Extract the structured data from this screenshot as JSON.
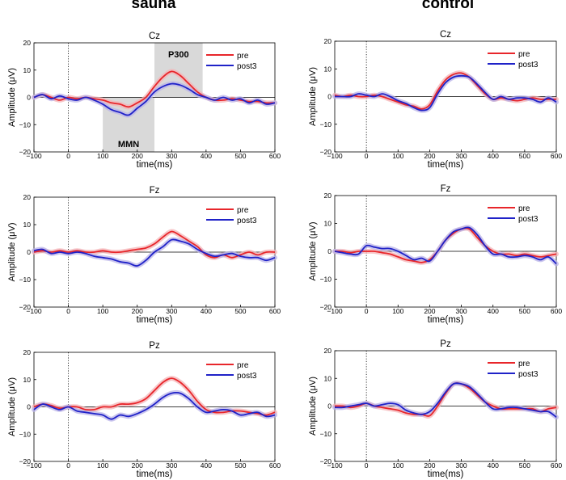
{
  "figure": {
    "column_titles": [
      "sauna",
      "control"
    ],
    "ylabel": "Amplitude (μV)",
    "xlabel": "time(ms)"
  },
  "colors": {
    "pre": "#e8262b",
    "post3": "#1f22c8",
    "pre_band": "#f4b3b5",
    "post3_band": "#b9b3e8",
    "shade": "#d9d9d9"
  },
  "chart_data": [
    {
      "type": "line",
      "group": "sauna",
      "title": "Cz",
      "xlabel": "time(ms)",
      "ylabel": "Amplitude (μV)",
      "xlim": [
        -100,
        600
      ],
      "ylim": [
        -20,
        20
      ],
      "xticks": [
        -100,
        0,
        100,
        200,
        300,
        400,
        500,
        600
      ],
      "yticks": [
        -20,
        -10,
        0,
        10,
        20
      ],
      "legend_position": "top-right",
      "shaded_windows": [
        {
          "label": "MMN",
          "range": [
            100,
            250
          ]
        },
        {
          "label": "P300",
          "range": [
            250,
            390
          ]
        }
      ],
      "x": [
        -100,
        -75,
        -50,
        -25,
        0,
        25,
        50,
        75,
        100,
        125,
        150,
        175,
        200,
        225,
        250,
        275,
        300,
        325,
        350,
        375,
        400,
        425,
        450,
        475,
        500,
        525,
        550,
        575,
        600
      ],
      "series": [
        {
          "name": "pre",
          "values": [
            0,
            1,
            0,
            -1,
            0,
            -0.5,
            0,
            -0.5,
            -1,
            -2,
            -2.5,
            -3.5,
            -2,
            0,
            4,
            7.5,
            9.5,
            8,
            5,
            2,
            0,
            -1,
            -1,
            -0.5,
            -1,
            -1.5,
            -1.5,
            -2,
            -2
          ]
        },
        {
          "name": "post3",
          "values": [
            0,
            1,
            -0.5,
            0.5,
            -0.5,
            -1,
            0,
            -1,
            -2.5,
            -4.5,
            -5.5,
            -6.5,
            -4,
            -1.5,
            2,
            4,
            5,
            4.5,
            3,
            1,
            0,
            -1,
            0,
            -1,
            -0.5,
            -2,
            -1,
            -2.5,
            -2
          ]
        }
      ]
    },
    {
      "type": "line",
      "group": "control",
      "title": "Cz",
      "xlabel": "time(ms)",
      "ylabel": "Amplitude (μV)",
      "xlim": [
        -100,
        600
      ],
      "ylim": [
        -20,
        20
      ],
      "xticks": [
        -100,
        0,
        100,
        200,
        300,
        400,
        500,
        600
      ],
      "yticks": [
        -20,
        -10,
        0,
        10,
        20
      ],
      "legend_position": "top-right",
      "x": [
        -100,
        -75,
        -50,
        -25,
        0,
        25,
        50,
        75,
        100,
        125,
        150,
        175,
        200,
        225,
        250,
        275,
        300,
        325,
        350,
        375,
        400,
        425,
        450,
        475,
        500,
        525,
        550,
        575,
        600
      ],
      "series": [
        {
          "name": "pre",
          "values": [
            0.5,
            0,
            0.5,
            0,
            0,
            0.5,
            0,
            -1,
            -2,
            -3,
            -3.5,
            -4.5,
            -3,
            2,
            6,
            8,
            8.5,
            7,
            4,
            1,
            -1,
            -0.5,
            -1,
            -1.5,
            -1,
            -0.5,
            -1,
            -1,
            -1
          ]
        },
        {
          "name": "post3",
          "values": [
            0,
            0,
            0,
            1,
            0.5,
            0,
            1,
            0,
            -1.5,
            -2.5,
            -4,
            -5,
            -4,
            1,
            5,
            7,
            7.5,
            7,
            4.5,
            1.5,
            -1,
            0,
            -1,
            -0.5,
            -0.5,
            -1,
            -2,
            -0.5,
            -2
          ]
        }
      ]
    },
    {
      "type": "line",
      "group": "sauna",
      "title": "Fz",
      "xlabel": "time(ms)",
      "ylabel": "Amplitude (μV)",
      "xlim": [
        -100,
        600
      ],
      "ylim": [
        -20,
        20
      ],
      "xticks": [
        -100,
        0,
        100,
        200,
        300,
        400,
        500,
        600
      ],
      "yticks": [
        -20,
        -10,
        0,
        10,
        20
      ],
      "legend_position": "top-right",
      "x": [
        -100,
        -75,
        -50,
        -25,
        0,
        25,
        50,
        75,
        100,
        125,
        150,
        175,
        200,
        225,
        250,
        275,
        300,
        325,
        350,
        375,
        400,
        425,
        450,
        475,
        500,
        525,
        550,
        575,
        600
      ],
      "series": [
        {
          "name": "pre",
          "values": [
            0,
            0.5,
            0,
            0.5,
            0,
            0.5,
            0,
            0,
            0.5,
            0,
            0,
            0.5,
            1,
            1.5,
            3,
            5.5,
            7.5,
            6,
            4,
            2,
            -1,
            -2,
            -1,
            -2,
            -1,
            0,
            -1,
            0,
            0
          ]
        },
        {
          "name": "post3",
          "values": [
            0.5,
            1,
            -0.5,
            0,
            -0.5,
            0,
            -0.5,
            -1.5,
            -2,
            -2.5,
            -3.5,
            -4,
            -5,
            -3,
            0,
            2,
            4.5,
            4,
            3,
            1,
            -0.5,
            -1.5,
            -1,
            -0.5,
            -1.5,
            -2,
            -2,
            -3,
            -2
          ]
        }
      ]
    },
    {
      "type": "line",
      "group": "control",
      "title": "Fz",
      "xlabel": "time(ms)",
      "ylabel": "Amplitude (μV)",
      "xlim": [
        -100,
        600
      ],
      "ylim": [
        -20,
        20
      ],
      "xticks": [
        -100,
        0,
        100,
        200,
        300,
        400,
        500,
        600
      ],
      "yticks": [
        -20,
        -10,
        0,
        10,
        20
      ],
      "legend_position": "top-right",
      "x": [
        -100,
        -75,
        -50,
        -25,
        0,
        25,
        50,
        75,
        100,
        125,
        150,
        175,
        200,
        225,
        250,
        275,
        300,
        325,
        350,
        375,
        400,
        425,
        450,
        475,
        500,
        525,
        550,
        575,
        600
      ],
      "series": [
        {
          "name": "pre",
          "values": [
            0,
            0,
            -0.5,
            0,
            0,
            0,
            -0.5,
            -1,
            -2,
            -3,
            -3.5,
            -4,
            -3,
            0,
            4,
            6.5,
            8,
            8,
            5,
            2,
            0,
            -1,
            -1,
            -1.5,
            -1,
            -1.5,
            -2,
            -1.5,
            -1
          ]
        },
        {
          "name": "post3",
          "values": [
            0,
            -0.5,
            -1,
            -1,
            2,
            1.5,
            1,
            1,
            0,
            -1.5,
            -3,
            -2.5,
            -3.5,
            0,
            4,
            7,
            8,
            8.5,
            6,
            2,
            -1,
            -1,
            -2,
            -2,
            -1.5,
            -2,
            -3,
            -2,
            -4.5
          ]
        }
      ]
    },
    {
      "type": "line",
      "group": "sauna",
      "title": "Pz",
      "xlabel": "time(ms)",
      "ylabel": "Amplitude (μV)",
      "xlim": [
        -100,
        600
      ],
      "ylim": [
        -20,
        20
      ],
      "xticks": [
        -100,
        0,
        100,
        200,
        300,
        400,
        500,
        600
      ],
      "yticks": [
        -20,
        -10,
        0,
        10,
        20
      ],
      "legend_position": "top-right",
      "x": [
        -100,
        -75,
        -50,
        -25,
        0,
        25,
        50,
        75,
        100,
        125,
        150,
        175,
        200,
        225,
        250,
        275,
        300,
        325,
        350,
        375,
        400,
        425,
        450,
        475,
        500,
        525,
        550,
        575,
        600
      ],
      "series": [
        {
          "name": "pre",
          "values": [
            0,
            1,
            0.5,
            -0.5,
            0,
            0,
            -1,
            -1,
            0,
            0,
            1,
            1,
            1.5,
            3,
            6,
            9,
            10.5,
            9,
            6,
            2,
            -1,
            -2,
            -2,
            -1.5,
            -1.5,
            -2,
            -2.5,
            -3,
            -2
          ]
        },
        {
          "name": "post3",
          "values": [
            -1,
            1,
            0,
            -1,
            0,
            -1.5,
            -2,
            -2.5,
            -3,
            -4.5,
            -3,
            -3.5,
            -2.5,
            -1,
            1,
            3.5,
            5,
            5,
            3,
            0,
            -2,
            -1.5,
            -1,
            -1.5,
            -3,
            -2.5,
            -2,
            -3.5,
            -3
          ]
        }
      ]
    },
    {
      "type": "line",
      "group": "control",
      "title": "Pz",
      "xlabel": "time(ms)",
      "ylabel": "Amplitude (μV)",
      "xlim": [
        -100,
        600
      ],
      "ylim": [
        -20,
        20
      ],
      "xticks": [
        -100,
        0,
        100,
        200,
        300,
        400,
        500,
        600
      ],
      "yticks": [
        -20,
        -10,
        0,
        10,
        20
      ],
      "legend_position": "top-right",
      "x": [
        -100,
        -75,
        -50,
        -25,
        0,
        25,
        50,
        75,
        100,
        125,
        150,
        175,
        200,
        225,
        250,
        275,
        300,
        325,
        350,
        375,
        400,
        425,
        450,
        475,
        500,
        525,
        550,
        575,
        600
      ],
      "series": [
        {
          "name": "pre",
          "values": [
            0,
            0,
            -0.5,
            0,
            1,
            0,
            -0.5,
            -1,
            -1.5,
            -2.5,
            -3,
            -3,
            -3.5,
            0,
            4.5,
            8,
            8,
            6.5,
            4,
            1.5,
            0,
            -1,
            -1,
            -1,
            -1,
            -1,
            -2,
            -1,
            -0.5
          ]
        },
        {
          "name": "post3",
          "values": [
            -0.5,
            -0.5,
            0,
            0.5,
            1,
            0,
            0.5,
            1,
            0.5,
            -1.5,
            -2.5,
            -3,
            -2,
            1,
            5,
            8,
            8,
            7,
            4.5,
            1.5,
            -1,
            -1,
            -0.5,
            -0.5,
            -1,
            -1.5,
            -2,
            -2,
            -4
          ]
        }
      ]
    }
  ]
}
